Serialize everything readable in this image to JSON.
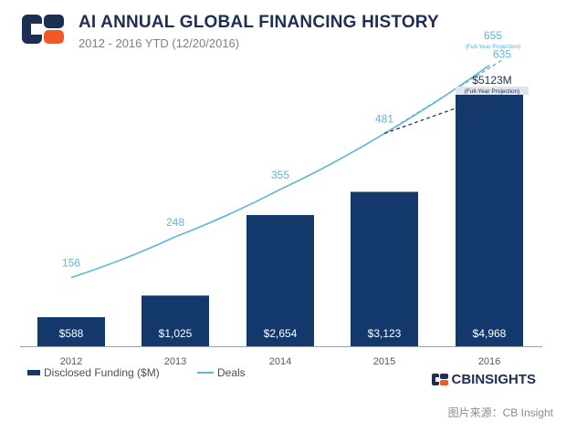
{
  "header": {
    "title": "AI ANNUAL GLOBAL FINANCING HISTORY",
    "subtitle": "2012 - 2016 YTD (12/20/2016)"
  },
  "colors": {
    "bar": "#13386b",
    "deals_line": "#5fb5d6",
    "logo_navy": "#1d2f52",
    "logo_orange": "#f15a24"
  },
  "chart_data": {
    "type": "bar",
    "categories": [
      "2012",
      "2013",
      "2014",
      "2015",
      "2016"
    ],
    "series": [
      {
        "name": "Disclosed Funding ($M)",
        "type": "bar",
        "values": [
          588,
          1025,
          2654,
          3123,
          4968
        ],
        "labels": [
          "$588",
          "$1,025",
          "$2,654",
          "$3,123",
          "$4,968"
        ]
      },
      {
        "name": "Deals",
        "type": "line",
        "values": [
          156,
          248,
          355,
          481,
          635
        ],
        "labels": [
          "156",
          "248",
          "355",
          "481",
          "635"
        ]
      }
    ],
    "projection": {
      "funding_value": 5123,
      "funding_label": "$5123M",
      "funding_note": "(Full-Year Projection)",
      "deals_value": 655,
      "deals_label": "655",
      "deals_note": "(Full-Year Projection)"
    },
    "legend_position": "bottom-left",
    "grid": false
  },
  "legend": {
    "funding": "Disclosed Funding ($M)",
    "deals": "Deals"
  },
  "brand": "CBINSIGHTS",
  "caption": "图片来源：CB Insight"
}
